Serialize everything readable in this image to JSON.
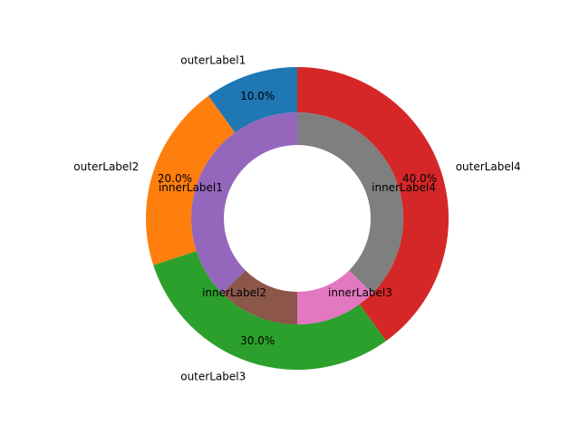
{
  "chart_data": {
    "type": "pie",
    "style": "nested-donut",
    "outer": {
      "labels": [
        "outerLabel1",
        "outerLabel2",
        "outerLabel3",
        "outerLabel4"
      ],
      "values": [
        10,
        20,
        30,
        40
      ],
      "percent_labels": [
        "10.0%",
        "20.0%",
        "30.0%",
        "40.0%"
      ],
      "colors": [
        "#1f77b4",
        "#ff7f0e",
        "#2ca02c",
        "#d62728"
      ]
    },
    "inner": {
      "labels": [
        "innerLabel1",
        "innerLabel2",
        "innerLabel3",
        "innerLabel4"
      ],
      "values": [
        30,
        10,
        10,
        30
      ],
      "colors": [
        "#9467bd",
        "#8c564b",
        "#e377c2",
        "#7f7f7f"
      ]
    },
    "start_angle_deg": 90,
    "direction": "counterclockwise"
  }
}
